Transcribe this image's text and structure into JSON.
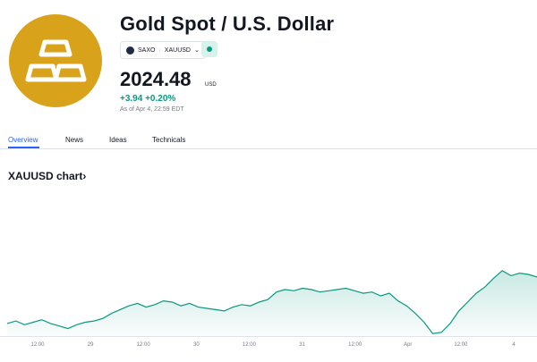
{
  "header": {
    "title": "Gold Spot / U.S. Dollar",
    "exchange": "SAXO",
    "separator": "·",
    "ticker": "XAUUSD",
    "price": "2024.48",
    "currency": "USD",
    "change": "+3.94 +0.20%",
    "as_of": "As of Apr 4, 22:59 EDT",
    "logo_color": "#d9a21b",
    "status_color": "#089981"
  },
  "tabs": [
    {
      "label": "Overview",
      "active": true
    },
    {
      "label": "News",
      "active": false
    },
    {
      "label": "Ideas",
      "active": false
    },
    {
      "label": "Technicals",
      "active": false
    }
  ],
  "chart_section": {
    "heading": "XAUUSD chart",
    "arrow": "›"
  },
  "chart_data": {
    "type": "area",
    "x_tick_labels": [
      "12:00",
      "29",
      "12:00",
      "30",
      "12:00",
      "31",
      "12:00",
      "Apr",
      "12:00",
      "4"
    ],
    "y_values": [
      1996,
      1998,
      1995,
      1997,
      1999,
      1996,
      1994,
      1992,
      1995,
      1997,
      1998,
      2000,
      2004,
      2007,
      2010,
      2012,
      2009,
      2011,
      2014,
      2013,
      2010,
      2012,
      2009,
      2008,
      2007,
      2006,
      2009,
      2011,
      2010,
      2013,
      2015,
      2021,
      2023,
      2022,
      2024,
      2023,
      2021,
      2022,
      2023,
      2024,
      2022,
      2020,
      2021,
      2018,
      2020,
      2014,
      2010,
      2004,
      1997,
      1988,
      1989,
      1996,
      2006,
      2013,
      2020,
      2025,
      2032,
      2038,
      2034,
      2036,
      2035,
      2033
    ],
    "line_color": "#089981",
    "fill_color": "#089981",
    "grid": false
  }
}
